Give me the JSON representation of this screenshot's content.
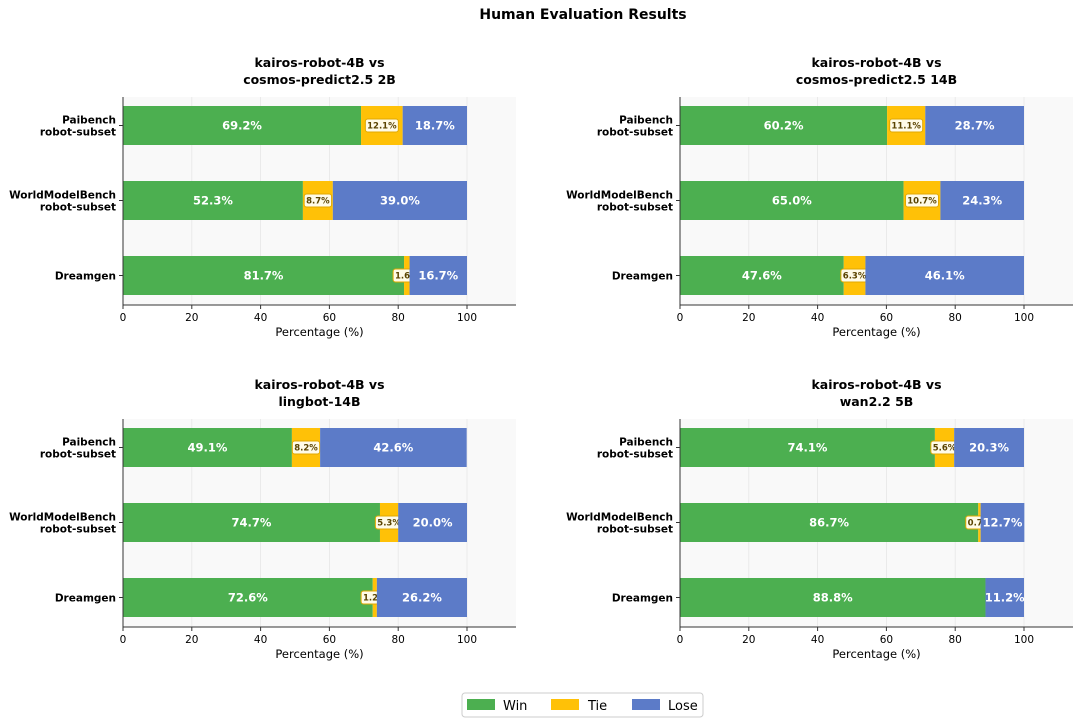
{
  "chart_data": {
    "type": "bar",
    "orientation": "horizontal-stacked",
    "title": "Human Evaluation Results",
    "legend": {
      "placement": "bottom-center",
      "entries": [
        "Win",
        "Tie",
        "Lose"
      ]
    },
    "colors": {
      "Win": "#4caf50",
      "Tie": "#ffc107",
      "Lose": "#5c7bc8"
    },
    "grid": true,
    "panels": [
      {
        "title_lines": [
          "kairos-robot-4B vs",
          "cosmos-predict2.5 2B"
        ],
        "xlabel": "Percentage (%)",
        "xlim": [
          0,
          100
        ],
        "xticks": [
          0,
          20,
          40,
          60,
          80,
          100
        ],
        "categories": [
          [
            "Paibench",
            "robot-subset"
          ],
          [
            "WorldModelBench",
            "robot-subset"
          ],
          [
            "Dreamgen"
          ]
        ],
        "series": [
          {
            "name": "Win",
            "values": [
              69.2,
              52.3,
              81.7
            ],
            "labels": [
              "69.2%",
              "52.3%",
              "81.7%"
            ]
          },
          {
            "name": "Tie",
            "values": [
              12.1,
              8.7,
              1.6
            ],
            "labels": [
              "12.1%",
              "8.7%",
              "1.6%"
            ]
          },
          {
            "name": "Lose",
            "values": [
              18.7,
              39.0,
              16.7
            ],
            "labels": [
              "18.7%",
              "39.0%",
              "16.7%"
            ]
          }
        ]
      },
      {
        "title_lines": [
          "kairos-robot-4B vs",
          "cosmos-predict2.5 14B"
        ],
        "xlabel": "Percentage (%)",
        "xlim": [
          0,
          100
        ],
        "xticks": [
          0,
          20,
          40,
          60,
          80,
          100
        ],
        "categories": [
          [
            "Paibench",
            "robot-subset"
          ],
          [
            "WorldModelBench",
            "robot-subset"
          ],
          [
            "Dreamgen"
          ]
        ],
        "series": [
          {
            "name": "Win",
            "values": [
              60.2,
              65.0,
              47.6
            ],
            "labels": [
              "60.2%",
              "65.0%",
              "47.6%"
            ]
          },
          {
            "name": "Tie",
            "values": [
              11.1,
              10.7,
              6.3
            ],
            "labels": [
              "11.1%",
              "10.7%",
              "6.3%"
            ]
          },
          {
            "name": "Lose",
            "values": [
              28.7,
              24.3,
              46.1
            ],
            "labels": [
              "28.7%",
              "24.3%",
              "46.1%"
            ]
          }
        ]
      },
      {
        "title_lines": [
          "kairos-robot-4B vs",
          "lingbot-14B"
        ],
        "xlabel": "Percentage (%)",
        "xlim": [
          0,
          100
        ],
        "xticks": [
          0,
          20,
          40,
          60,
          80,
          100
        ],
        "categories": [
          [
            "Paibench",
            "robot-subset"
          ],
          [
            "WorldModelBench",
            "robot-subset"
          ],
          [
            "Dreamgen"
          ]
        ],
        "series": [
          {
            "name": "Win",
            "values": [
              49.1,
              74.7,
              72.6
            ],
            "labels": [
              "49.1%",
              "74.7%",
              "72.6%"
            ]
          },
          {
            "name": "Tie",
            "values": [
              8.2,
              5.3,
              1.2
            ],
            "labels": [
              "8.2%",
              "5.3%",
              "1.2%"
            ]
          },
          {
            "name": "Lose",
            "values": [
              42.6,
              20.0,
              26.2
            ],
            "labels": [
              "42.6%",
              "20.0%",
              "26.2%"
            ]
          }
        ]
      },
      {
        "title_lines": [
          "kairos-robot-4B vs",
          "wan2.2 5B"
        ],
        "xlabel": "Percentage (%)",
        "xlim": [
          0,
          100
        ],
        "xticks": [
          0,
          20,
          40,
          60,
          80,
          100
        ],
        "categories": [
          [
            "Paibench",
            "robot-subset"
          ],
          [
            "WorldModelBench",
            "robot-subset"
          ],
          [
            "Dreamgen"
          ]
        ],
        "series": [
          {
            "name": "Win",
            "values": [
              74.1,
              86.7,
              88.8
            ],
            "labels": [
              "74.1%",
              "86.7%",
              "88.8%"
            ]
          },
          {
            "name": "Tie",
            "values": [
              5.6,
              0.7,
              0.0
            ],
            "labels": [
              "5.6%",
              "0.7%",
              ""
            ]
          },
          {
            "name": "Lose",
            "values": [
              20.3,
              12.7,
              11.2
            ],
            "labels": [
              "20.3%",
              "12.7%",
              "11.2%"
            ]
          }
        ]
      }
    ]
  }
}
